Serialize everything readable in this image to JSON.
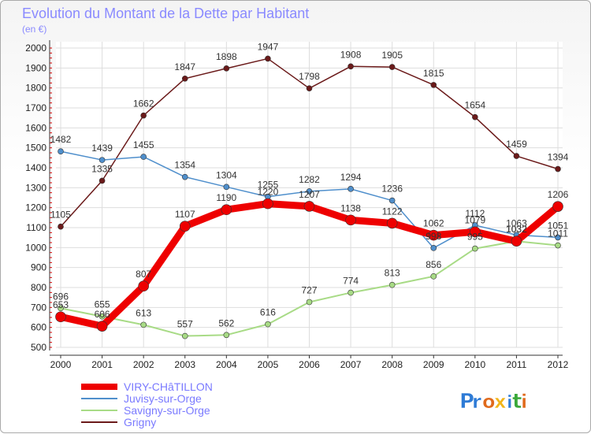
{
  "chart_data": {
    "type": "line",
    "title": "Evolution du Montant de la Dette par Habitant",
    "subtitle": "(en €)",
    "x": [
      "2000",
      "2001",
      "2002",
      "2003",
      "2004",
      "2005",
      "2006",
      "2007",
      "2008",
      "2009",
      "2010",
      "2011",
      "2012"
    ],
    "ylim": [
      500,
      2000
    ],
    "yticks": [
      500,
      600,
      700,
      800,
      900,
      1000,
      1100,
      1200,
      1300,
      1400,
      1500,
      1600,
      1700,
      1800,
      1900,
      2000
    ],
    "grid": true,
    "legend_position": "bottom-left",
    "series": [
      {
        "name": "Grigny",
        "color": "#6b1a1a",
        "values": [
          1105,
          1335,
          1662,
          1847,
          1898,
          1947,
          1798,
          1908,
          1905,
          1815,
          1654,
          1459,
          1394
        ]
      },
      {
        "name": "Juvisy-sur-Orge",
        "color": "#4f8fcc",
        "values": [
          1482,
          1439,
          1455,
          1354,
          1304,
          1255,
          1282,
          1294,
          1236,
          998,
          1112,
          1063,
          1051
        ]
      },
      {
        "name": "Savigny-sur-Orge",
        "color": "#a8db86",
        "values": [
          696,
          655,
          613,
          557,
          562,
          616,
          727,
          774,
          813,
          856,
          995,
          1032,
          1011
        ]
      },
      {
        "name": "VIRY-CHâTILLON",
        "color": "#ee0000",
        "values": [
          653,
          606,
          807,
          1107,
          1190,
          1220,
          1207,
          1138,
          1122,
          1062,
          1079,
          1032,
          1206
        ]
      }
    ]
  },
  "legend": [
    "VIRY-CHâTILLON",
    "Juvisy-sur-Orge",
    "Savigny-sur-Orge",
    "Grigny"
  ],
  "logo": {
    "text": "Proxiti",
    "colors": [
      "#2e7bd6",
      "#2e7bd6",
      "#e06a1c",
      "#f2b51a",
      "#2e7bd6",
      "#3aa83a",
      "#e06a1c"
    ]
  }
}
